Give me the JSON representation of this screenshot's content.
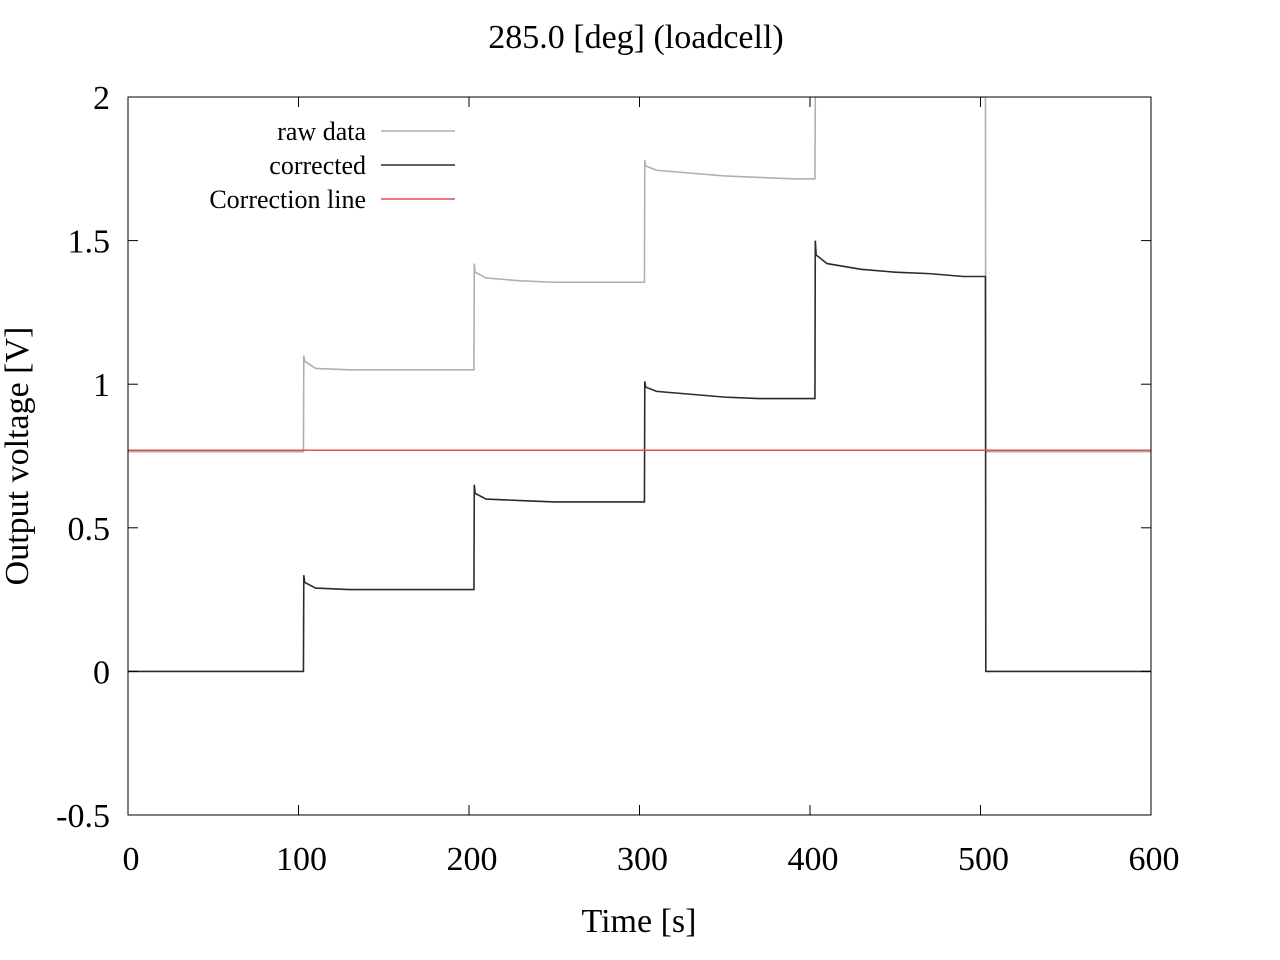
{
  "chart_data": {
    "type": "line",
    "title": "285.0 [deg] (loadcell)",
    "xlabel": "Time [s]",
    "ylabel": "Output voltage [V]",
    "xlim": [
      0,
      600
    ],
    "ylim": [
      -0.5,
      2
    ],
    "xticks": [
      0,
      100,
      200,
      300,
      400,
      500,
      600
    ],
    "yticks": [
      -0.5,
      0,
      0.5,
      1,
      1.5,
      2
    ],
    "xtick_labels": [
      "0",
      "100",
      "200",
      "300",
      "400",
      "500",
      "600"
    ],
    "ytick_labels": [
      "-0.5",
      "0",
      "0.5",
      "1",
      "1.5",
      "2"
    ],
    "grid": false,
    "legend_position": "top-left",
    "series": [
      {
        "name": "raw data",
        "color": "#b0b0b0",
        "x": [
          0,
          102.9,
          103.1,
          103.6,
          110,
          130,
          150,
          170,
          190,
          202.9,
          203.1,
          203.6,
          210,
          230,
          250,
          270,
          290,
          302.9,
          303.1,
          303.6,
          310,
          330,
          350,
          370,
          390,
          402.9,
          403.1,
          502.9,
          503.1,
          600
        ],
        "y": [
          0.765,
          0.765,
          1.1,
          1.08,
          1.055,
          1.05,
          1.05,
          1.05,
          1.05,
          1.05,
          1.42,
          1.39,
          1.37,
          1.36,
          1.355,
          1.355,
          1.355,
          1.355,
          1.78,
          1.76,
          1.745,
          1.735,
          1.725,
          1.72,
          1.715,
          1.715,
          2.0,
          2.0,
          0.765,
          0.765
        ]
      },
      {
        "name": "corrected",
        "color": "#2b2b2b",
        "x": [
          0,
          102.9,
          103.1,
          103.6,
          110,
          130,
          150,
          170,
          190,
          202.9,
          203.1,
          203.6,
          210,
          230,
          250,
          270,
          290,
          302.9,
          303.1,
          303.6,
          310,
          330,
          350,
          370,
          390,
          402.9,
          403.1,
          403.6,
          410,
          430,
          450,
          470,
          490,
          502.9,
          503.1,
          600
        ],
        "y": [
          0.0,
          0.0,
          0.335,
          0.31,
          0.29,
          0.285,
          0.285,
          0.285,
          0.285,
          0.285,
          0.65,
          0.62,
          0.6,
          0.595,
          0.59,
          0.59,
          0.59,
          0.59,
          1.01,
          0.99,
          0.975,
          0.965,
          0.955,
          0.95,
          0.95,
          0.95,
          1.5,
          1.45,
          1.42,
          1.4,
          1.39,
          1.385,
          1.375,
          1.375,
          0.0,
          0.0
        ]
      },
      {
        "name": "Correction line",
        "color": "#e05050",
        "x": [
          0,
          600
        ],
        "y": [
          0.77,
          0.77
        ]
      }
    ]
  }
}
